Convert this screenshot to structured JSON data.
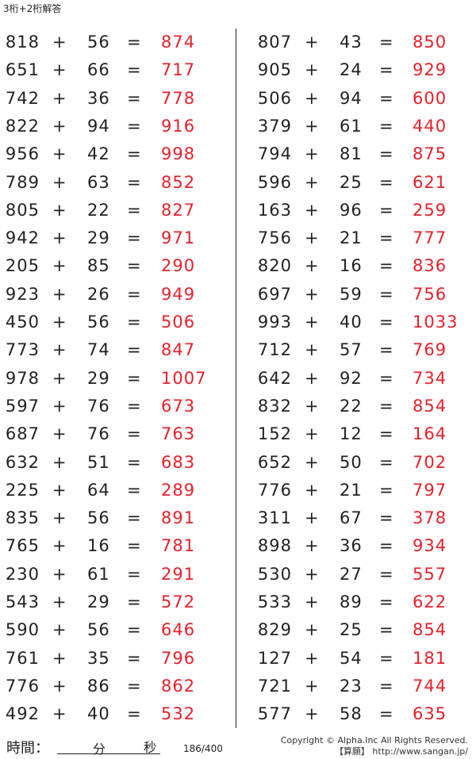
{
  "title": "3桁+2桁解答",
  "operator": "+",
  "equals": "=",
  "answer_color": "#e8202a",
  "left_problems": [
    [
      "818",
      "56",
      "874"
    ],
    [
      "651",
      "66",
      "717"
    ],
    [
      "742",
      "36",
      "778"
    ],
    [
      "822",
      "94",
      "916"
    ],
    [
      "956",
      "42",
      "998"
    ],
    [
      "789",
      "63",
      "852"
    ],
    [
      "805",
      "22",
      "827"
    ],
    [
      "942",
      "29",
      "971"
    ],
    [
      "205",
      "85",
      "290"
    ],
    [
      "923",
      "26",
      "949"
    ],
    [
      "450",
      "56",
      "506"
    ],
    [
      "773",
      "74",
      "847"
    ],
    [
      "978",
      "29",
      "1007"
    ],
    [
      "597",
      "76",
      "673"
    ],
    [
      "687",
      "76",
      "763"
    ],
    [
      "632",
      "51",
      "683"
    ],
    [
      "225",
      "64",
      "289"
    ],
    [
      "835",
      "56",
      "891"
    ],
    [
      "765",
      "16",
      "781"
    ],
    [
      "230",
      "61",
      "291"
    ],
    [
      "543",
      "29",
      "572"
    ],
    [
      "590",
      "56",
      "646"
    ],
    [
      "761",
      "35",
      "796"
    ],
    [
      "776",
      "86",
      "862"
    ],
    [
      "492",
      "40",
      "532"
    ]
  ],
  "right_problems": [
    [
      "807",
      "43",
      "850"
    ],
    [
      "905",
      "24",
      "929"
    ],
    [
      "506",
      "94",
      "600"
    ],
    [
      "379",
      "61",
      "440"
    ],
    [
      "794",
      "81",
      "875"
    ],
    [
      "596",
      "25",
      "621"
    ],
    [
      "163",
      "96",
      "259"
    ],
    [
      "756",
      "21",
      "777"
    ],
    [
      "820",
      "16",
      "836"
    ],
    [
      "697",
      "59",
      "756"
    ],
    [
      "993",
      "40",
      "1033"
    ],
    [
      "712",
      "57",
      "769"
    ],
    [
      "642",
      "92",
      "734"
    ],
    [
      "832",
      "22",
      "854"
    ],
    [
      "152",
      "12",
      "164"
    ],
    [
      "652",
      "50",
      "702"
    ],
    [
      "776",
      "21",
      "797"
    ],
    [
      "311",
      "67",
      "378"
    ],
    [
      "898",
      "36",
      "934"
    ],
    [
      "530",
      "27",
      "557"
    ],
    [
      "533",
      "89",
      "622"
    ],
    [
      "829",
      "25",
      "854"
    ],
    [
      "127",
      "54",
      "181"
    ],
    [
      "721",
      "23",
      "744"
    ],
    [
      "577",
      "58",
      "635"
    ]
  ],
  "footer": {
    "time_label": "時間：",
    "minutes": "分",
    "seconds": "秒",
    "page": "186/400",
    "copyright": "Copyright © Alpha.Inc All Rights Reserved.",
    "site": "【算願】 http://www.sangan.jp/"
  }
}
